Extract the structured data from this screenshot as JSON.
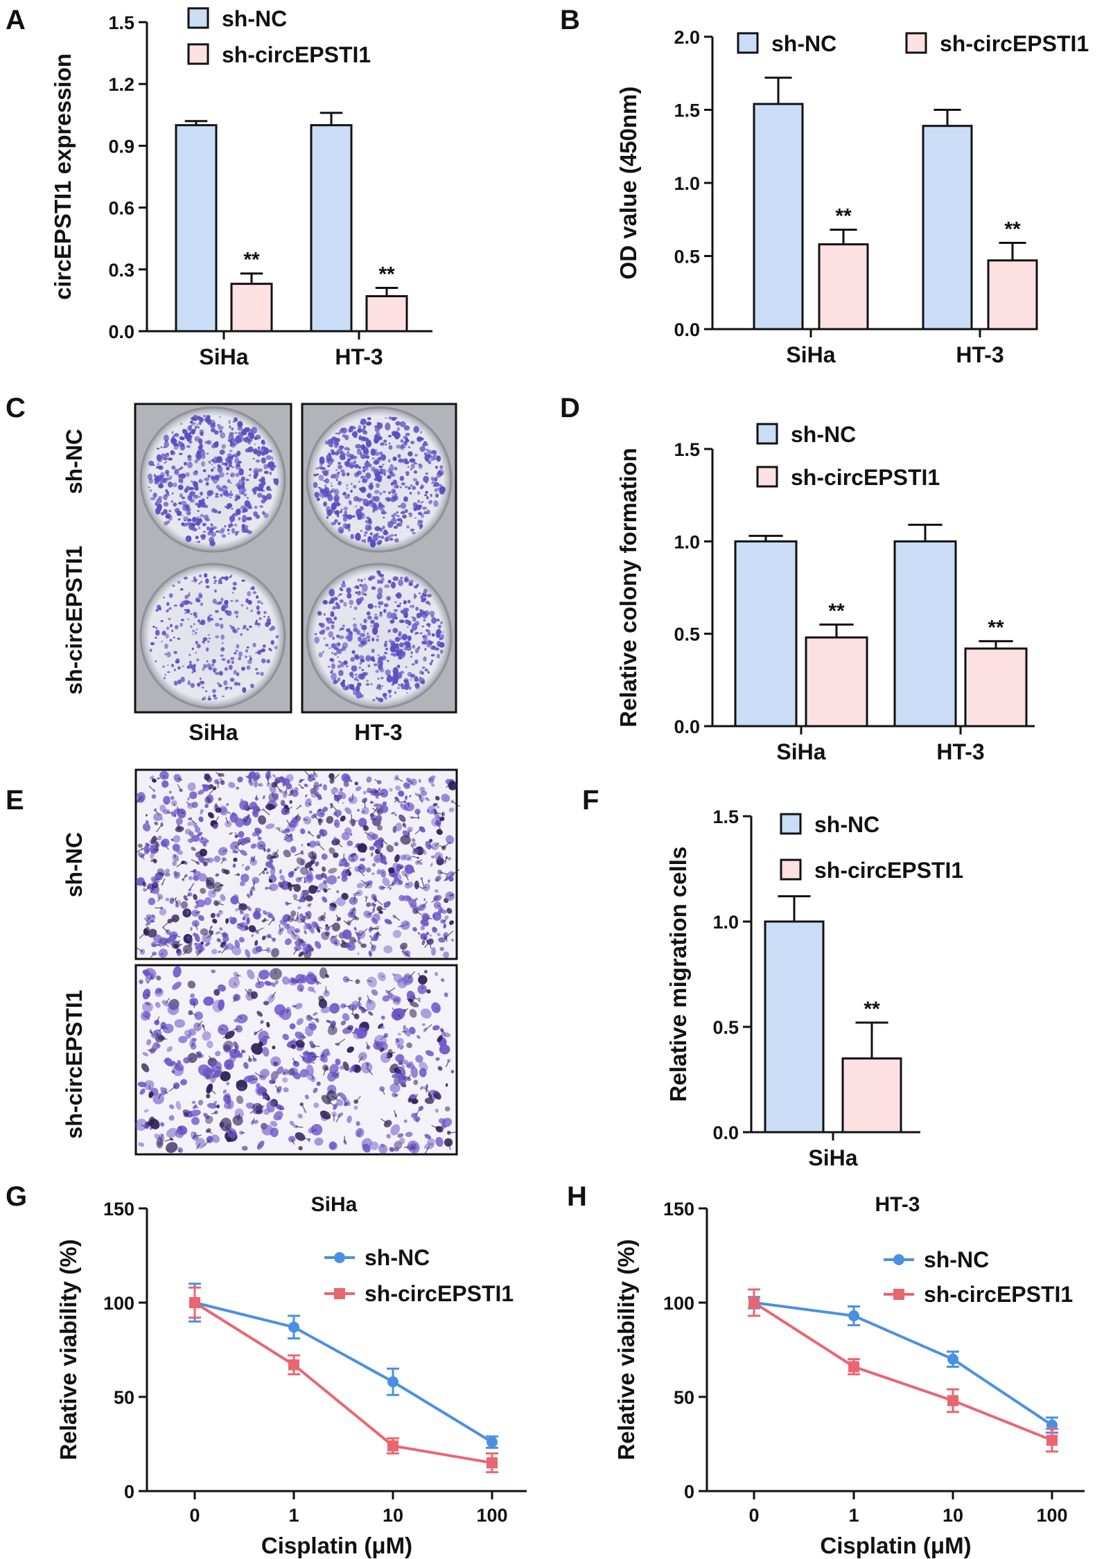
{
  "colors": {
    "nc": "#c9ddf6",
    "kd": "#fde1e2",
    "nc_line": "#4a90e2",
    "kd_line": "#e96670",
    "stroke": "#111111",
    "stain": "#5a4ec2"
  },
  "chart_data": [
    {
      "id": "A",
      "type": "bar",
      "letter": "A",
      "ylabel": "circEPSTI1 expression",
      "categories": [
        "SiHa",
        "HT-3"
      ],
      "yticks": [
        "0.0",
        "0.3",
        "0.6",
        "0.9",
        "1.2",
        "1.5"
      ],
      "ylim": [
        0,
        1.5
      ],
      "legend": [
        "sh-NC",
        "sh-circEPSTI1"
      ],
      "legend_placement": "top",
      "series": [
        {
          "name": "sh-NC",
          "values": [
            1.0,
            1.0
          ],
          "errors": [
            0.02,
            0.06
          ]
        },
        {
          "name": "sh-circEPSTI1",
          "values": [
            0.23,
            0.17
          ],
          "errors": [
            0.05,
            0.04
          ]
        }
      ],
      "annotations": [
        "**",
        "**"
      ]
    },
    {
      "id": "B",
      "type": "bar",
      "letter": "B",
      "ylabel": "OD value (450nm)",
      "categories": [
        "SiHa",
        "HT-3"
      ],
      "yticks": [
        "0.0",
        "0.5",
        "1.0",
        "1.5",
        "2.0"
      ],
      "ylim": [
        0,
        2.0
      ],
      "legend": [
        "sh-NC",
        "sh-circEPSTI1"
      ],
      "legend_placement": "top",
      "series": [
        {
          "name": "sh-NC",
          "values": [
            1.54,
            1.39
          ],
          "errors": [
            0.18,
            0.11
          ]
        },
        {
          "name": "sh-circEPSTI1",
          "values": [
            0.58,
            0.47
          ],
          "errors": [
            0.1,
            0.12
          ]
        }
      ],
      "annotations": [
        "**",
        "**"
      ]
    },
    {
      "id": "D",
      "type": "bar",
      "letter": "D",
      "ylabel": "Relative colony formation",
      "categories": [
        "SiHa",
        "HT-3"
      ],
      "yticks": [
        "0.0",
        "0.5",
        "1.0",
        "1.5"
      ],
      "ylim": [
        0,
        1.5
      ],
      "legend": [
        "sh-NC",
        "sh-circEPSTI1"
      ],
      "legend_placement": "top",
      "series": [
        {
          "name": "sh-NC",
          "values": [
            1.0,
            1.0
          ],
          "errors": [
            0.03,
            0.09
          ]
        },
        {
          "name": "sh-circEPSTI1",
          "values": [
            0.48,
            0.42
          ],
          "errors": [
            0.07,
            0.04
          ]
        }
      ],
      "annotations": [
        "**",
        "**"
      ]
    },
    {
      "id": "F",
      "type": "bar",
      "letter": "F",
      "ylabel": "Relative migration cells",
      "categories": [
        "SiHa"
      ],
      "yticks": [
        "0.0",
        "0.5",
        "1.0",
        "1.5"
      ],
      "ylim": [
        0,
        1.5
      ],
      "legend": [
        "sh-NC",
        "sh-circEPSTI1"
      ],
      "legend_placement": "top",
      "series": [
        {
          "name": "sh-NC",
          "values": [
            1.0
          ],
          "errors": [
            0.12
          ]
        },
        {
          "name": "sh-circEPSTI1",
          "values": [
            0.35
          ],
          "errors": [
            0.17
          ]
        }
      ],
      "annotations": [
        "**"
      ]
    },
    {
      "id": "G",
      "type": "line",
      "letter": "G",
      "title": "SiHa",
      "ylabel": "Relative viability (%)",
      "xlabel": "Cisplatin (μM)",
      "x": [
        "0",
        "1",
        "10",
        "100"
      ],
      "yticks": [
        "0",
        "50",
        "100",
        "150"
      ],
      "ylim": [
        0,
        150
      ],
      "legend": [
        "sh-NC",
        "sh-circEPSTI1"
      ],
      "legend_placement": "top-right",
      "series": [
        {
          "name": "sh-NC",
          "values": [
            100,
            87,
            58,
            26
          ],
          "errors": [
            10,
            6,
            7,
            3
          ]
        },
        {
          "name": "sh-circEPSTI1",
          "values": [
            100,
            67,
            24,
            15
          ],
          "errors": [
            8,
            5,
            4,
            5
          ]
        }
      ]
    },
    {
      "id": "H",
      "type": "line",
      "letter": "H",
      "title": "HT-3",
      "ylabel": "Relative viability (%)",
      "xlabel": "Cisplatin (μM)",
      "x": [
        "0",
        "1",
        "10",
        "100"
      ],
      "yticks": [
        "0",
        "50",
        "100",
        "150"
      ],
      "ylim": [
        0,
        150
      ],
      "legend": [
        "sh-NC",
        "sh-circEPSTI1"
      ],
      "legend_placement": "top-right",
      "series": [
        {
          "name": "sh-NC",
          "values": [
            100,
            93,
            70,
            35
          ],
          "errors": [
            3,
            5,
            4,
            4
          ]
        },
        {
          "name": "sh-circEPSTI1",
          "values": [
            100,
            66,
            48,
            27
          ],
          "errors": [
            7,
            4,
            6,
            6
          ]
        }
      ]
    }
  ],
  "panel_C": {
    "letter": "C",
    "rows": [
      "sh-NC",
      "sh-circEPSTI1"
    ],
    "cols": [
      "SiHa",
      "HT-3"
    ]
  },
  "panel_E": {
    "letter": "E",
    "rows": [
      "sh-NC",
      "sh-circEPSTI1"
    ]
  }
}
